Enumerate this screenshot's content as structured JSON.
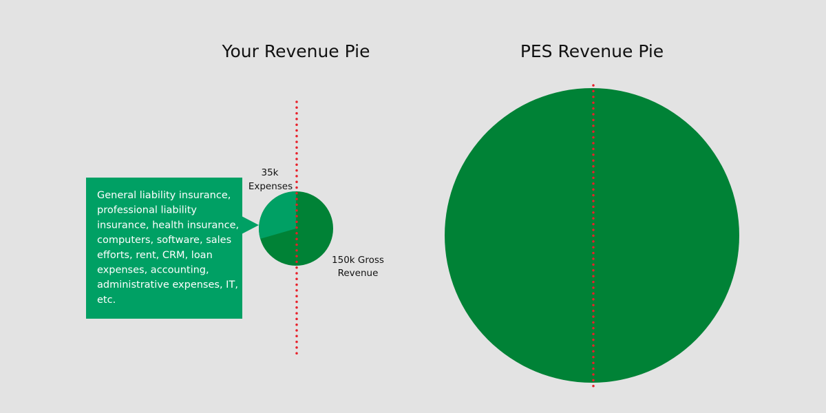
{
  "left": {
    "title": "Your Revenue Pie",
    "expenses_label": [
      "35k",
      "Expenses"
    ],
    "revenue_label": [
      "150k Gross",
      "Revenue"
    ],
    "callout": [
      "General liability insurance,",
      "professional liability",
      "insurance, health insurance,",
      "computers, software, sales",
      "efforts, rent, CRM, loan",
      "expenses, accounting,",
      "administrative expenses, IT,",
      "etc."
    ]
  },
  "right": {
    "title": "PES Revenue Pie"
  }
}
